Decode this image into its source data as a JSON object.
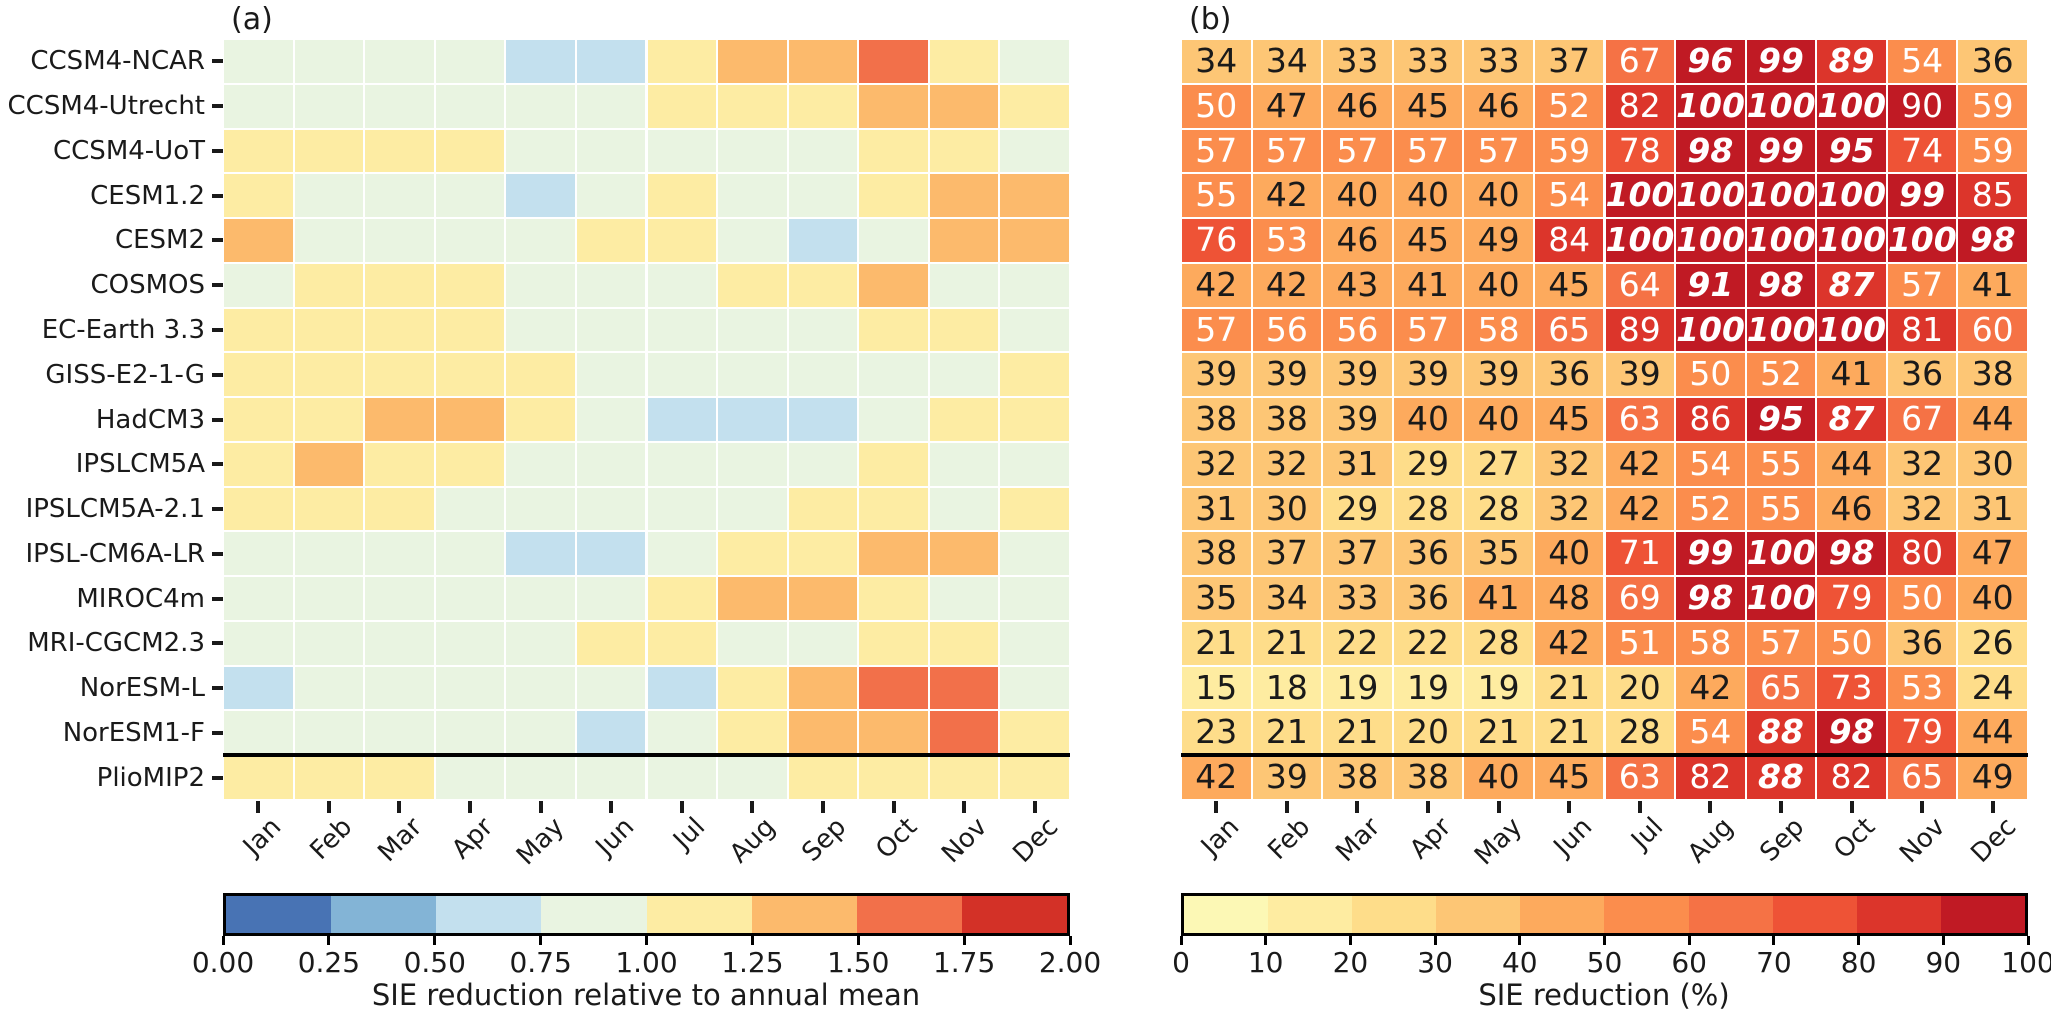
{
  "figure": {
    "panels": [
      {
        "id": "a",
        "label": "(a)"
      },
      {
        "id": "b",
        "label": "(b)"
      }
    ]
  },
  "models": [
    "CCSM4-NCAR",
    "CCSM4-Utrecht",
    "CCSM4-UoT",
    "CESM1.2",
    "CESM2",
    "COSMOS",
    "EC-Earth 3.3",
    "GISS-E2-1-G",
    "HadCM3",
    "IPSLCM5A",
    "IPSLCM5A-2.1",
    "IPSL-CM6A-LR",
    "MIROC4m",
    "MRI-CGCM2.3",
    "NorESM-L",
    "NorESM1-F",
    "PlioMIP2"
  ],
  "months": [
    "Jan",
    "Feb",
    "Mar",
    "Apr",
    "May",
    "Jun",
    "Jul",
    "Aug",
    "Sep",
    "Oct",
    "Nov",
    "Dec"
  ],
  "separator_above_row": "PlioMIP2",
  "chart_data": [
    {
      "type": "heatmap",
      "panel": "a",
      "title": "(a)",
      "categories_y": [
        "CCSM4-NCAR",
        "CCSM4-Utrecht",
        "CCSM4-UoT",
        "CESM1.2",
        "CESM2",
        "COSMOS",
        "EC-Earth 3.3",
        "GISS-E2-1-G",
        "HadCM3",
        "IPSLCM5A",
        "IPSLCM5A-2.1",
        "IPSL-CM6A-LR",
        "MIROC4m",
        "MRI-CGCM2.3",
        "NorESM-L",
        "NorESM1-F",
        "PlioMIP2"
      ],
      "categories_x": [
        "Jan",
        "Feb",
        "Mar",
        "Apr",
        "May",
        "Jun",
        "Jul",
        "Aug",
        "Sep",
        "Oct",
        "Nov",
        "Dec"
      ],
      "annotated": false,
      "vmin": 0.0,
      "vmax": 2.0,
      "bin_size": 0.25,
      "values_note": "values estimated from discrete color bins; bin centers used",
      "values": [
        [
          0.9,
          0.9,
          0.9,
          0.9,
          0.6,
          0.6,
          1.1,
          1.4,
          1.4,
          1.6,
          1.1,
          0.9
        ],
        [
          0.9,
          0.9,
          0.9,
          0.9,
          0.9,
          0.9,
          1.1,
          1.1,
          1.1,
          1.4,
          1.4,
          1.1
        ],
        [
          1.1,
          1.1,
          1.1,
          1.1,
          0.9,
          0.9,
          0.9,
          0.9,
          0.9,
          1.1,
          1.1,
          0.9
        ],
        [
          1.1,
          0.9,
          0.9,
          0.9,
          0.6,
          0.9,
          1.1,
          0.9,
          0.9,
          1.1,
          1.4,
          1.4
        ],
        [
          1.4,
          0.9,
          0.9,
          0.9,
          0.9,
          1.1,
          1.1,
          0.9,
          0.6,
          0.9,
          1.4,
          1.4
        ],
        [
          0.9,
          1.1,
          1.1,
          1.1,
          0.9,
          0.9,
          0.9,
          1.1,
          1.1,
          1.4,
          0.9,
          0.9
        ],
        [
          1.1,
          1.1,
          1.1,
          1.1,
          0.9,
          0.9,
          0.9,
          0.9,
          0.9,
          1.1,
          1.1,
          0.9
        ],
        [
          1.1,
          1.1,
          1.1,
          1.1,
          1.1,
          0.9,
          0.9,
          0.9,
          0.9,
          0.9,
          0.9,
          1.1
        ],
        [
          1.1,
          1.1,
          1.4,
          1.4,
          1.1,
          0.9,
          0.6,
          0.6,
          0.6,
          0.9,
          1.1,
          1.1
        ],
        [
          1.1,
          1.4,
          1.1,
          1.1,
          0.9,
          0.9,
          0.9,
          0.9,
          0.9,
          1.1,
          0.9,
          0.9
        ],
        [
          1.1,
          1.1,
          1.1,
          0.9,
          0.9,
          0.9,
          0.9,
          0.9,
          1.1,
          1.1,
          0.9,
          1.1
        ],
        [
          0.9,
          0.9,
          0.9,
          0.9,
          0.6,
          0.6,
          0.9,
          1.1,
          1.1,
          1.4,
          1.4,
          0.9
        ],
        [
          0.9,
          0.9,
          0.9,
          0.9,
          0.9,
          0.9,
          1.1,
          1.4,
          1.4,
          1.1,
          0.9,
          0.9
        ],
        [
          0.9,
          0.9,
          0.9,
          0.9,
          0.9,
          1.1,
          1.1,
          0.9,
          0.9,
          1.1,
          1.1,
          0.9
        ],
        [
          0.6,
          0.9,
          0.9,
          0.9,
          0.9,
          0.9,
          0.6,
          1.1,
          1.4,
          1.6,
          1.6,
          0.9
        ],
        [
          0.9,
          0.9,
          0.9,
          0.9,
          0.9,
          0.6,
          0.9,
          1.1,
          1.4,
          1.4,
          1.6,
          1.1
        ],
        [
          1.1,
          1.1,
          1.1,
          0.9,
          0.9,
          0.9,
          0.9,
          0.9,
          1.1,
          1.1,
          1.1,
          1.1
        ]
      ],
      "colorbar": {
        "label": "SIE reduction relative to annual mean",
        "tick_labels": [
          "0.00",
          "0.25",
          "0.50",
          "0.75",
          "1.00",
          "1.25",
          "1.50",
          "1.75",
          "2.00"
        ],
        "colors": [
          "#4873b4",
          "#83b4d6",
          "#c3e0ee",
          "#e9f4e1",
          "#fdeca3",
          "#fcba6c",
          "#f2704a",
          "#d33127"
        ]
      }
    },
    {
      "type": "heatmap",
      "panel": "b",
      "title": "(b)",
      "categories_y": [
        "CCSM4-NCAR",
        "CCSM4-Utrecht",
        "CCSM4-UoT",
        "CESM1.2",
        "CESM2",
        "COSMOS",
        "EC-Earth 3.3",
        "GISS-E2-1-G",
        "HadCM3",
        "IPSLCM5A",
        "IPSLCM5A-2.1",
        "IPSL-CM6A-LR",
        "MIROC4m",
        "MRI-CGCM2.3",
        "NorESM-L",
        "NorESM1-F",
        "PlioMIP2"
      ],
      "categories_x": [
        "Jan",
        "Feb",
        "Mar",
        "Apr",
        "May",
        "Jun",
        "Jul",
        "Aug",
        "Sep",
        "Oct",
        "Nov",
        "Dec"
      ],
      "annotated": true,
      "vmin": 0,
      "vmax": 100,
      "bin_size": 10,
      "values": [
        [
          34,
          34,
          33,
          33,
          33,
          37,
          67,
          96,
          99,
          89,
          54,
          36
        ],
        [
          50,
          47,
          46,
          45,
          46,
          52,
          82,
          100,
          100,
          100,
          90,
          59
        ],
        [
          57,
          57,
          57,
          57,
          57,
          59,
          78,
          98,
          99,
          95,
          74,
          59
        ],
        [
          55,
          42,
          40,
          40,
          40,
          54,
          100,
          100,
          100,
          100,
          99,
          85
        ],
        [
          76,
          53,
          46,
          45,
          49,
          84,
          100,
          100,
          100,
          100,
          100,
          98
        ],
        [
          42,
          42,
          43,
          41,
          40,
          45,
          64,
          91,
          98,
          87,
          57,
          41
        ],
        [
          57,
          56,
          56,
          57,
          58,
          65,
          89,
          100,
          100,
          100,
          81,
          60
        ],
        [
          39,
          39,
          39,
          39,
          39,
          36,
          39,
          50,
          52,
          41,
          36,
          38
        ],
        [
          38,
          38,
          39,
          40,
          40,
          45,
          63,
          86,
          95,
          87,
          67,
          44
        ],
        [
          32,
          32,
          31,
          29,
          27,
          32,
          42,
          54,
          55,
          44,
          32,
          30
        ],
        [
          31,
          30,
          29,
          28,
          28,
          32,
          42,
          52,
          55,
          46,
          32,
          31
        ],
        [
          38,
          37,
          37,
          36,
          35,
          40,
          71,
          99,
          100,
          98,
          80,
          47
        ],
        [
          35,
          34,
          33,
          36,
          41,
          48,
          69,
          98,
          100,
          79,
          50,
          40
        ],
        [
          21,
          21,
          22,
          22,
          28,
          42,
          51,
          58,
          57,
          50,
          36,
          26
        ],
        [
          15,
          18,
          19,
          19,
          19,
          21,
          20,
          42,
          65,
          73,
          53,
          24
        ],
        [
          23,
          21,
          21,
          20,
          21,
          21,
          28,
          54,
          88,
          98,
          79,
          44
        ],
        [
          42,
          39,
          38,
          38,
          40,
          45,
          63,
          82,
          88,
          82,
          65,
          49
        ]
      ],
      "bold_italic_cells": [
        [
          0,
          0,
          0,
          0,
          0,
          0,
          0,
          1,
          1,
          1,
          0,
          0
        ],
        [
          0,
          0,
          0,
          0,
          0,
          0,
          0,
          1,
          1,
          1,
          0,
          0
        ],
        [
          0,
          0,
          0,
          0,
          0,
          0,
          0,
          1,
          1,
          1,
          0,
          0
        ],
        [
          0,
          0,
          0,
          0,
          0,
          0,
          1,
          1,
          1,
          1,
          1,
          0
        ],
        [
          0,
          0,
          0,
          0,
          0,
          0,
          1,
          1,
          1,
          1,
          1,
          1
        ],
        [
          0,
          0,
          0,
          0,
          0,
          0,
          0,
          1,
          1,
          1,
          0,
          0
        ],
        [
          0,
          0,
          0,
          0,
          0,
          0,
          0,
          1,
          1,
          1,
          0,
          0
        ],
        [
          0,
          0,
          0,
          0,
          0,
          0,
          0,
          0,
          0,
          0,
          0,
          0
        ],
        [
          0,
          0,
          0,
          0,
          0,
          0,
          0,
          0,
          1,
          1,
          0,
          0
        ],
        [
          0,
          0,
          0,
          0,
          0,
          0,
          0,
          0,
          0,
          0,
          0,
          0
        ],
        [
          0,
          0,
          0,
          0,
          0,
          0,
          0,
          0,
          0,
          0,
          0,
          0
        ],
        [
          0,
          0,
          0,
          0,
          0,
          0,
          0,
          1,
          1,
          1,
          0,
          0
        ],
        [
          0,
          0,
          0,
          0,
          0,
          0,
          0,
          1,
          1,
          0,
          0,
          0
        ],
        [
          0,
          0,
          0,
          0,
          0,
          0,
          0,
          0,
          0,
          0,
          0,
          0
        ],
        [
          0,
          0,
          0,
          0,
          0,
          0,
          0,
          0,
          0,
          0,
          0,
          0
        ],
        [
          0,
          0,
          0,
          0,
          0,
          0,
          0,
          0,
          1,
          1,
          0,
          0
        ],
        [
          0,
          0,
          0,
          0,
          0,
          0,
          0,
          0,
          1,
          0,
          0,
          0
        ]
      ],
      "colorbar": {
        "label": "SIE reduction (%)",
        "tick_labels": [
          "0",
          "10",
          "20",
          "30",
          "40",
          "50",
          "60",
          "70",
          "80",
          "90",
          "100"
        ],
        "colors": [
          "#fcf8b5",
          "#feeca1",
          "#fedd8a",
          "#fdc675",
          "#fdaa5d",
          "#fb8d4d",
          "#f57245",
          "#ee5336",
          "#dc352b",
          "#c01a24"
        ]
      }
    }
  ],
  "style": {
    "dark_text": "#1a1a1a",
    "light_text": "#ffffff",
    "gridline": "#ffffff",
    "separator": "#000000"
  }
}
